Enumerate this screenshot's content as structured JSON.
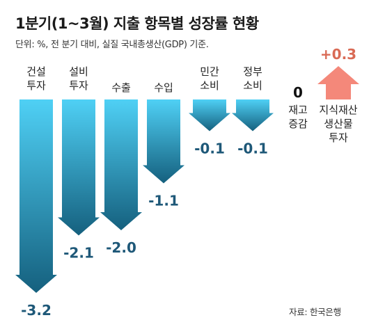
{
  "title": "1분기(1~3월) 지출 항목별 성장률 현황",
  "subtitle": "단위: %, 전 분기 대비, 실질 국내총생산(GDP) 기준.",
  "source": "자료: 한국은행",
  "colors": {
    "negative_top": "#4fd0f5",
    "negative_bottom": "#15607e",
    "positive": "#f4887a",
    "negative_text": "#1e5878",
    "positive_text": "#d96a55"
  },
  "chart_data": {
    "type": "bar",
    "title": "1분기(1~3월) 지출 항목별 성장률 현황",
    "unit": "%",
    "categories": [
      [
        "건설",
        "투자"
      ],
      [
        "설비",
        "투자"
      ],
      [
        "수출"
      ],
      [
        "수입"
      ],
      [
        "민간",
        "소비"
      ],
      [
        "정부",
        "소비"
      ],
      [
        "재고",
        "증감"
      ],
      [
        "지식재산",
        "생산물",
        "투자"
      ]
    ],
    "values": [
      -3.2,
      -2.1,
      -2.0,
      -1.1,
      -0.1,
      -0.1,
      0,
      0.3
    ],
    "value_labels": [
      "-3.2",
      "-2.1",
      "-2.0",
      "-1.1",
      "-0.1",
      "-0.1",
      "0",
      "+0.3"
    ],
    "grid": false,
    "legend": "none"
  }
}
